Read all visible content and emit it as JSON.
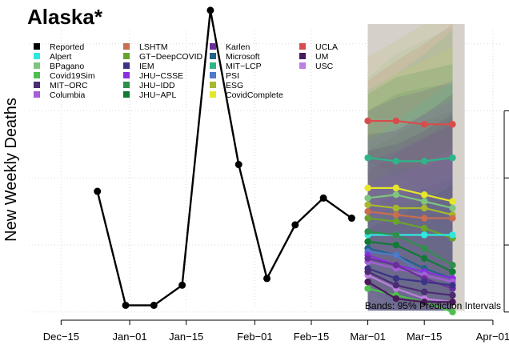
{
  "chart_data": {
    "type": "line",
    "title": "Alaska*",
    "ylabel": "New Weekly Deaths",
    "xlabel": "",
    "x_ticks": [
      "Dec−15",
      "Jan−01",
      "Jan−15",
      "Feb−01",
      "Feb−15",
      "Mar−01",
      "Mar−15",
      "Apr−01"
    ],
    "x_tick_days": [
      -17,
      0,
      14,
      31,
      45,
      59,
      73,
      90
    ],
    "xlim_days": [
      -25,
      92
    ],
    "ylim": [
      -0.5,
      42
    ],
    "grid": true,
    "legend_placement": "top-left",
    "note": "Bands: 95% Prediction Intervals",
    "reported": {
      "name": "Reported",
      "color": "#000000",
      "days": [
        -8,
        -1,
        6,
        13,
        20,
        27,
        34,
        41,
        48,
        55
      ],
      "values": [
        18,
        1,
        1,
        4,
        45,
        22,
        5,
        13,
        17,
        14
      ]
    },
    "forecast_band": {
      "start_day": 59,
      "end_day": 83
    },
    "legend": [
      {
        "name": "Reported",
        "color": "#000000"
      },
      {
        "name": "Alpert",
        "color": "#2ee8e0"
      },
      {
        "name": "BPagano",
        "color": "#7fc47f"
      },
      {
        "name": "Covid19Sim",
        "color": "#4dbf4d"
      },
      {
        "name": "MIT−ORC",
        "color": "#4b2d73"
      },
      {
        "name": "Columbia",
        "color": "#a65fd6"
      },
      {
        "name": "LSHTM",
        "color": "#c96e4e"
      },
      {
        "name": "GT−DeepCOVID",
        "color": "#6aa32c"
      },
      {
        "name": "IEM",
        "color": "#3b3486"
      },
      {
        "name": "JHU−CSSE",
        "color": "#8c2fe0"
      },
      {
        "name": "JHU−IDD",
        "color": "#2f8f4a"
      },
      {
        "name": "JHU−APL",
        "color": "#117a36"
      },
      {
        "name": "Karlen",
        "color": "#6a2f9a"
      },
      {
        "name": "Microsoft",
        "color": "#23628c"
      },
      {
        "name": "MIT−LCP",
        "color": "#2fb58a"
      },
      {
        "name": "PSI",
        "color": "#4f79c9"
      },
      {
        "name": "ESG",
        "color": "#a8b82e"
      },
      {
        "name": "CovidComplete",
        "color": "#e6e62a"
      },
      {
        "name": "UCLA",
        "color": "#d94c4c"
      },
      {
        "name": "UM",
        "color": "#4b1a5a"
      },
      {
        "name": "USC",
        "color": "#bd7fe0"
      }
    ],
    "series": [
      {
        "name": "UCLA",
        "color": "#d94c4c",
        "days": [
          59,
          66,
          73,
          80
        ],
        "values": [
          28.5,
          28.5,
          28,
          28
        ]
      },
      {
        "name": "MIT−LCP",
        "color": "#2fb58a",
        "days": [
          59,
          66,
          73,
          80
        ],
        "values": [
          23,
          22.5,
          22.5,
          23
        ]
      },
      {
        "name": "CovidComplete",
        "color": "#e6e62a",
        "days": [
          59,
          66,
          73,
          80
        ],
        "values": [
          18.5,
          18.5,
          17.5,
          16.5
        ]
      },
      {
        "name": "BPagano",
        "color": "#7fc47f",
        "days": [
          59,
          66,
          73,
          80
        ],
        "values": [
          17,
          17.5,
          16.5,
          15.5
        ]
      },
      {
        "name": "ESG",
        "color": "#a8b82e",
        "days": [
          59,
          66,
          73,
          80
        ],
        "values": [
          16,
          15.5,
          15.5,
          14.5
        ]
      },
      {
        "name": "LSHTM",
        "color": "#c96e4e",
        "days": [
          59,
          66,
          73,
          80
        ],
        "values": [
          15,
          14.5,
          14,
          14
        ]
      },
      {
        "name": "GT−DeepCOVID",
        "color": "#6aa32c",
        "days": [
          59,
          66,
          73,
          80
        ],
        "values": [
          14,
          13.5,
          12.5,
          11
        ]
      },
      {
        "name": "Alpert",
        "color": "#2ee8e0",
        "days": [
          59,
          66,
          73,
          80
        ],
        "values": [
          11.5,
          11.5,
          11.5,
          11.5
        ]
      },
      {
        "name": "JHU−IDD",
        "color": "#2f8f4a",
        "days": [
          59,
          66,
          73,
          80
        ],
        "values": [
          12,
          11.5,
          9.5,
          7
        ]
      },
      {
        "name": "JHU−APL",
        "color": "#117a36",
        "days": [
          59,
          66,
          73,
          80
        ],
        "values": [
          10.5,
          10,
          8,
          6
        ]
      },
      {
        "name": "Microsoft",
        "color": "#23628c",
        "days": [
          59,
          66,
          73,
          80
        ],
        "values": [
          9.5,
          8.5,
          6.5,
          5
        ]
      },
      {
        "name": "PSI",
        "color": "#4f79c9",
        "days": [
          59,
          66,
          73,
          80
        ],
        "values": [
          9,
          8.5,
          5.5,
          4.5
        ]
      },
      {
        "name": "JHU−CSSE",
        "color": "#8c2fe0",
        "days": [
          59,
          66,
          73,
          80
        ],
        "values": [
          8.5,
          7,
          6,
          5
        ]
      },
      {
        "name": "Columbia",
        "color": "#a65fd6",
        "days": [
          59,
          66,
          73,
          80
        ],
        "values": [
          7.5,
          6.5,
          5.5,
          4.5
        ]
      },
      {
        "name": "Karlen",
        "color": "#6a2f9a",
        "days": [
          59,
          66,
          73,
          80
        ],
        "values": [
          8,
          7,
          5,
          3.5
        ]
      },
      {
        "name": "IEM",
        "color": "#3b3486",
        "days": [
          59,
          66,
          73,
          80
        ],
        "values": [
          6.5,
          5,
          4.5,
          4
        ]
      },
      {
        "name": "Covid19Sim",
        "color": "#4dbf4d",
        "days": [
          59,
          66,
          73,
          80
        ],
        "values": [
          3.5,
          2.5,
          1.5,
          0
        ]
      },
      {
        "name": "USC",
        "color": "#bd7fe0",
        "days": [
          59,
          66,
          73,
          80
        ],
        "values": [
          5.5,
          3.5,
          2,
          1.5
        ]
      },
      {
        "name": "MIT−ORC",
        "color": "#4b2d73",
        "days": [
          59,
          66,
          73,
          80
        ],
        "values": [
          6,
          4,
          3,
          2.5
        ]
      },
      {
        "name": "UM",
        "color": "#4b1a5a",
        "days": [
          59,
          66,
          73,
          80
        ],
        "values": [
          4.5,
          2,
          1.5,
          1.5
        ]
      }
    ]
  }
}
